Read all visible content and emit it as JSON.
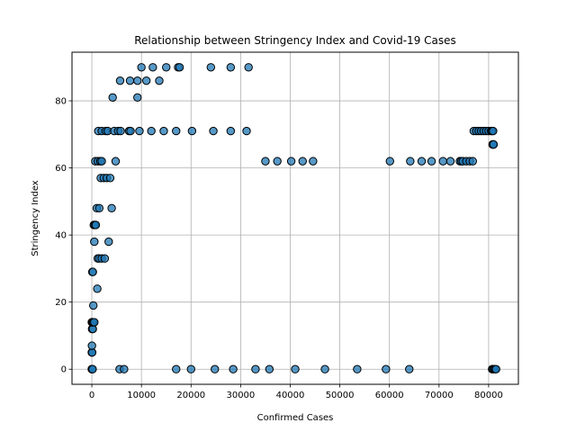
{
  "chart_data": {
    "type": "scatter",
    "title": "Relationship between Stringency Index and Covid-19 Cases",
    "xlabel": "Confirmed Cases",
    "ylabel": "Stringency Index",
    "xlim": [
      -4000,
      86000
    ],
    "ylim": [
      -4.5,
      94.5
    ],
    "xticks": [
      0,
      10000,
      20000,
      30000,
      40000,
      50000,
      60000,
      70000,
      80000
    ],
    "xtick_labels": [
      "0",
      "10000",
      "20000",
      "30000",
      "40000",
      "50000",
      "60000",
      "70000",
      "80000"
    ],
    "yticks": [
      0,
      20,
      40,
      60,
      80
    ],
    "ytick_labels": [
      "0",
      "20",
      "40",
      "60",
      "80"
    ],
    "grid": true,
    "marker_color": "#1f77b4",
    "marker_edge_color": "#000000",
    "points": [
      [
        0,
        0
      ],
      [
        10,
        0
      ],
      [
        40,
        0
      ],
      [
        80,
        0
      ],
      [
        150,
        0
      ],
      [
        0,
        5
      ],
      [
        20,
        5
      ],
      [
        60,
        5
      ],
      [
        20,
        7
      ],
      [
        50,
        12
      ],
      [
        200,
        12
      ],
      [
        0,
        14
      ],
      [
        50,
        14
      ],
      [
        150,
        14
      ],
      [
        300,
        14
      ],
      [
        500,
        14
      ],
      [
        100,
        29
      ],
      [
        200,
        29
      ],
      [
        300,
        19
      ],
      [
        500,
        38
      ],
      [
        400,
        43
      ],
      [
        600,
        43
      ],
      [
        800,
        43
      ],
      [
        1000,
        48
      ],
      [
        1500,
        48
      ],
      [
        1200,
        33
      ],
      [
        1500,
        33
      ],
      [
        2000,
        33
      ],
      [
        2600,
        33
      ],
      [
        1100,
        24
      ],
      [
        700,
        62
      ],
      [
        1200,
        62
      ],
      [
        1700,
        62
      ],
      [
        2000,
        62
      ],
      [
        1800,
        57
      ],
      [
        2400,
        57
      ],
      [
        3000,
        57
      ],
      [
        3700,
        57
      ],
      [
        3400,
        38
      ],
      [
        4000,
        48
      ],
      [
        4800,
        62
      ],
      [
        1300,
        71
      ],
      [
        2000,
        71
      ],
      [
        2800,
        71
      ],
      [
        3200,
        71
      ],
      [
        4500,
        71
      ],
      [
        5300,
        71
      ],
      [
        5800,
        71
      ],
      [
        7500,
        71
      ],
      [
        7800,
        71
      ],
      [
        9600,
        71
      ],
      [
        12000,
        71
      ],
      [
        14500,
        71
      ],
      [
        17000,
        71
      ],
      [
        20200,
        71
      ],
      [
        24500,
        71
      ],
      [
        28000,
        71
      ],
      [
        31200,
        71
      ],
      [
        4200,
        81
      ],
      [
        9200,
        81
      ],
      [
        5700,
        86
      ],
      [
        7700,
        86
      ],
      [
        9200,
        86
      ],
      [
        11000,
        86
      ],
      [
        13600,
        86
      ],
      [
        10000,
        90
      ],
      [
        12300,
        90
      ],
      [
        15000,
        90
      ],
      [
        17400,
        90
      ],
      [
        17700,
        90
      ],
      [
        24000,
        90
      ],
      [
        28000,
        90
      ],
      [
        31600,
        90
      ],
      [
        5600,
        0
      ],
      [
        6500,
        0
      ],
      [
        17000,
        0
      ],
      [
        20000,
        0
      ],
      [
        24800,
        0
      ],
      [
        28500,
        0
      ],
      [
        33000,
        0
      ],
      [
        35800,
        0
      ],
      [
        41000,
        0
      ],
      [
        47000,
        0
      ],
      [
        53500,
        0
      ],
      [
        59300,
        0
      ],
      [
        64000,
        0
      ],
      [
        35000,
        62
      ],
      [
        37400,
        62
      ],
      [
        40200,
        62
      ],
      [
        42500,
        62
      ],
      [
        44600,
        62
      ],
      [
        60100,
        62
      ],
      [
        64200,
        62
      ],
      [
        66500,
        62
      ],
      [
        68500,
        62
      ],
      [
        70800,
        62
      ],
      [
        72300,
        62
      ],
      [
        74200,
        62
      ],
      [
        74500,
        62
      ],
      [
        74800,
        62
      ],
      [
        75500,
        62
      ],
      [
        76200,
        62
      ],
      [
        76800,
        62
      ],
      [
        77000,
        71
      ],
      [
        77500,
        71
      ],
      [
        78000,
        71
      ],
      [
        78500,
        71
      ],
      [
        79000,
        71
      ],
      [
        79500,
        71
      ],
      [
        80000,
        71
      ],
      [
        80500,
        71
      ],
      [
        80700,
        71
      ],
      [
        80900,
        71
      ],
      [
        80800,
        67
      ],
      [
        80900,
        67
      ],
      [
        81000,
        67
      ],
      [
        80700,
        0
      ],
      [
        80900,
        0
      ],
      [
        81100,
        0
      ],
      [
        81300,
        0
      ],
      [
        81500,
        0
      ]
    ]
  }
}
